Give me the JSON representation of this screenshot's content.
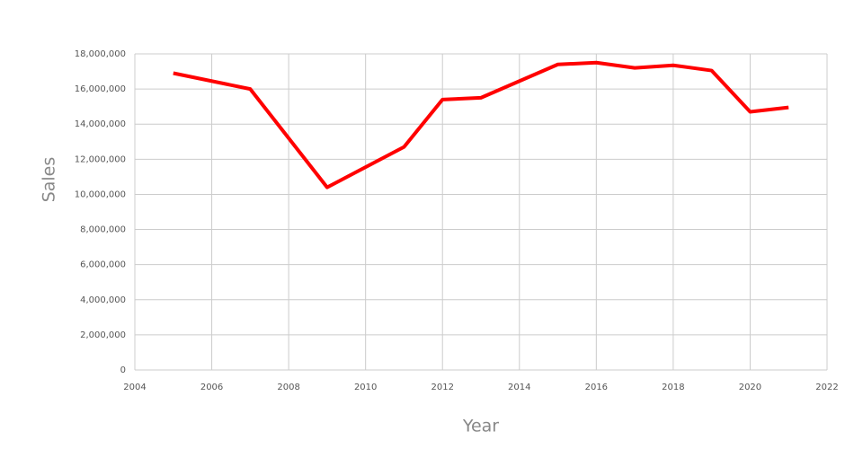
{
  "chart_data": {
    "type": "line",
    "x_label": "Year",
    "y_label": "Sales",
    "x": [
      2005,
      2007,
      2009,
      2011,
      2012,
      2013,
      2015,
      2016,
      2017,
      2018,
      2019,
      2020,
      2021
    ],
    "series": [
      {
        "name": "Sales",
        "color": "#ff0000",
        "values": [
          16900000,
          16000000,
          10400000,
          12700000,
          15400000,
          15500000,
          17400000,
          17500000,
          17200000,
          17350000,
          17050000,
          14700000,
          14950000
        ]
      }
    ],
    "xlim": [
      2004,
      2022
    ],
    "xticks": [
      2004,
      2006,
      2008,
      2010,
      2012,
      2014,
      2016,
      2018,
      2020,
      2022
    ],
    "ylim": [
      0,
      18000000
    ],
    "yticks": [
      0,
      {
        "value": 2000000,
        "label": "2,000,000"
      },
      {
        "value": 4000000,
        "label": "4,000,000"
      },
      {
        "value": 6000000,
        "label": "6,000,000"
      },
      {
        "value": 8000000,
        "label": "8,000,000"
      },
      {
        "value": 10000000,
        "label": "10,000,000"
      },
      {
        "value": 12000000,
        "label": "12,000,000"
      },
      {
        "value": 14000000,
        "label": "14,000,000"
      },
      {
        "value": 16000000,
        "label": "16,000,000"
      },
      {
        "value": 18000000,
        "label": "18,000,000"
      }
    ],
    "grid": true
  }
}
